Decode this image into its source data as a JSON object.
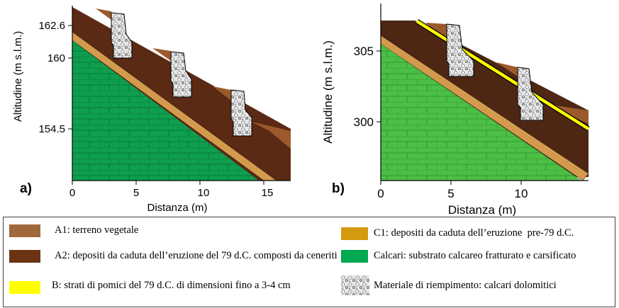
{
  "panels": [
    {
      "label": "a)",
      "x_axis_title": "Distanza (m)",
      "y_axis_title": "Altitudine (m s.l.m.)",
      "xticks": [
        "0",
        "5",
        "10",
        "15"
      ],
      "yticks": [
        "162.6",
        "160",
        "154.5"
      ]
    },
    {
      "label": "b)",
      "x_axis_title": "Distanza (m)",
      "y_axis_title": "Altitudine (m s.l.m.)",
      "xticks": [
        "0",
        "5",
        "10"
      ],
      "yticks": [
        "305",
        "300"
      ]
    }
  ],
  "legend": [
    {
      "text": "A1: terreno vegetale"
    },
    {
      "text": "A2: depositi da caduta dell’eruzione del 79 d.C. composti da ceneriti"
    },
    {
      "text": "B: strati di pomici del 79 d.C. di dimensioni fino a 3-4 cm"
    },
    {
      "text": "C1: depositi da caduta dell’eruzione  pre-79 d.C."
    },
    {
      "text": "Calcari: substrato calcareo fratturato e carsificato"
    },
    {
      "text": "Materiale di riempimento: calcari dolomitici"
    }
  ]
}
